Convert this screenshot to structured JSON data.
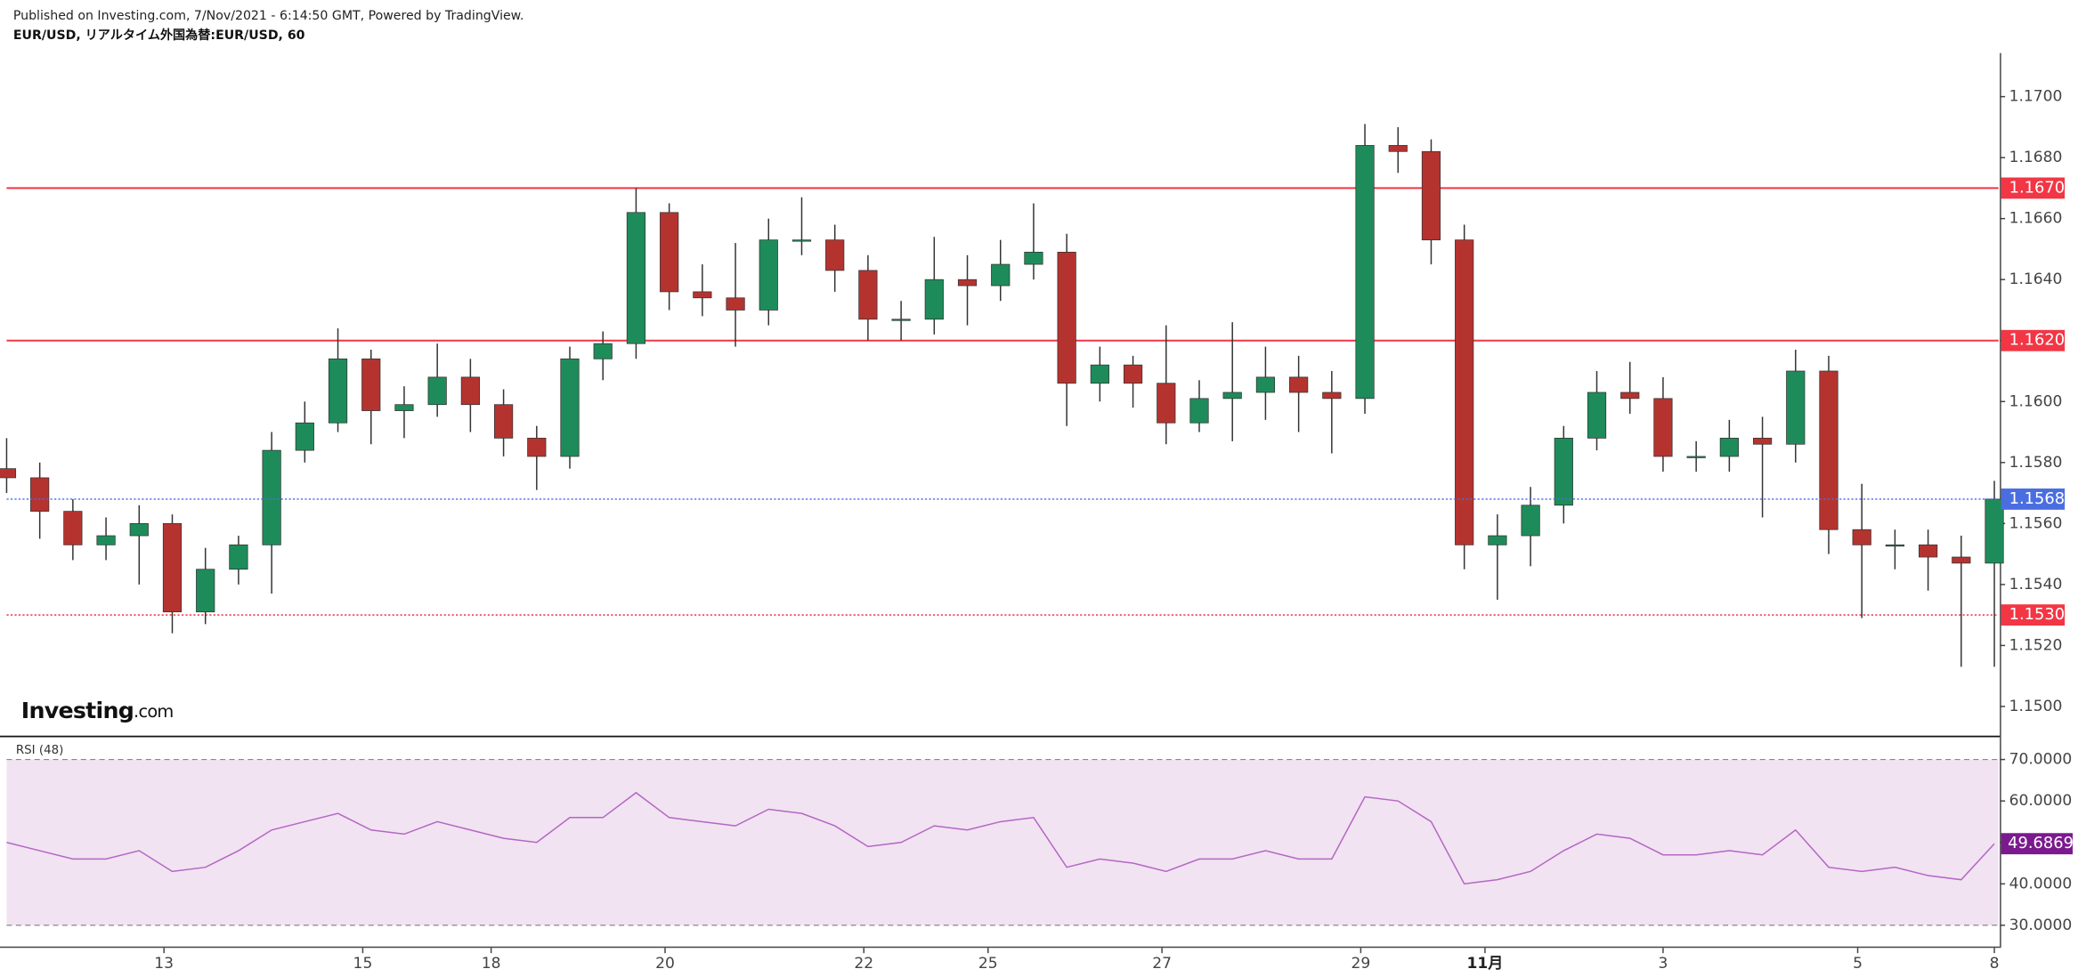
{
  "header": {
    "published": "Published on Investing.com, 7/Nov/2021 - 6:14:50 GMT, Powered by TradingView.",
    "symbol": "EUR/USD, リアルタイム外国為替:EUR/USD, 60"
  },
  "logo": {
    "main": "Investing",
    "suffix": ".com"
  },
  "chart_data": [
    {
      "type": "candlestick",
      "up_color": "#1e8c5a",
      "down_color": "#b5332f",
      "x": [
        0,
        8,
        16,
        24,
        32,
        40,
        48,
        56,
        64,
        72,
        80,
        88,
        96,
        104,
        112,
        120,
        128,
        136,
        144,
        152,
        160,
        168,
        176,
        184,
        192,
        200,
        208,
        216,
        224,
        232,
        240,
        248,
        256,
        264,
        272,
        280,
        288,
        296,
        304,
        312,
        320,
        328,
        336,
        344,
        352,
        360,
        368,
        376,
        384,
        392,
        400,
        408,
        416,
        424,
        432,
        440,
        448,
        456,
        464,
        472,
        480
      ],
      "open": [
        1.1578,
        1.1575,
        1.1564,
        1.1553,
        1.1556,
        1.156,
        1.1531,
        1.1545,
        1.1553,
        1.1584,
        1.1593,
        1.1614,
        1.1597,
        1.1599,
        1.1608,
        1.1599,
        1.1588,
        1.1582,
        1.1614,
        1.1619,
        1.1662,
        1.1636,
        1.1634,
        1.163,
        1.1653,
        1.1653,
        1.1643,
        1.1627,
        1.1627,
        1.164,
        1.1638,
        1.1645,
        1.1649,
        1.1606,
        1.1612,
        1.1606,
        1.1593,
        1.1601,
        1.1603,
        1.1608,
        1.1603,
        1.1601,
        1.1684,
        1.1682,
        1.1653,
        1.1553,
        1.1556,
        1.1566,
        1.1588,
        1.1603,
        1.1601,
        1.1582,
        1.1582,
        1.1588,
        1.1586,
        1.161,
        1.1558,
        1.1553,
        1.1553,
        1.1549,
        1.1547
      ],
      "high": [
        1.1588,
        1.158,
        1.1568,
        1.1562,
        1.1566,
        1.1563,
        1.1552,
        1.1556,
        1.159,
        1.16,
        1.1624,
        1.1617,
        1.1605,
        1.1619,
        1.1614,
        1.1604,
        1.1592,
        1.1618,
        1.1623,
        1.167,
        1.1665,
        1.1645,
        1.1652,
        1.166,
        1.1667,
        1.1658,
        1.1648,
        1.1633,
        1.1654,
        1.1648,
        1.1653,
        1.1665,
        1.1655,
        1.1618,
        1.1615,
        1.1625,
        1.1607,
        1.1626,
        1.1618,
        1.1615,
        1.161,
        1.1691,
        1.169,
        1.1686,
        1.1658,
        1.1563,
        1.1572,
        1.1592,
        1.161,
        1.1613,
        1.1608,
        1.1587,
        1.1594,
        1.1595,
        1.1617,
        1.1615,
        1.1573,
        1.1558,
        1.1558,
        1.1556,
        1.1574
      ],
      "low": [
        1.157,
        1.1555,
        1.1548,
        1.1548,
        1.154,
        1.1524,
        1.1527,
        1.154,
        1.1537,
        1.158,
        1.159,
        1.1586,
        1.1588,
        1.1595,
        1.159,
        1.1582,
        1.1571,
        1.1578,
        1.1607,
        1.1614,
        1.163,
        1.1628,
        1.1618,
        1.1625,
        1.1648,
        1.1636,
        1.162,
        1.162,
        1.1622,
        1.1625,
        1.1633,
        1.164,
        1.1592,
        1.16,
        1.1598,
        1.1586,
        1.159,
        1.1587,
        1.1594,
        1.159,
        1.1583,
        1.1596,
        1.1675,
        1.1645,
        1.1545,
        1.1535,
        1.1546,
        1.156,
        1.1584,
        1.1596,
        1.1577,
        1.1577,
        1.1577,
        1.1562,
        1.158,
        1.155,
        1.1529,
        1.1545,
        1.1538,
        1.1513,
        1.1513
      ],
      "close": [
        1.1575,
        1.1564,
        1.1553,
        1.1556,
        1.156,
        1.1531,
        1.1545,
        1.1553,
        1.1584,
        1.1593,
        1.1614,
        1.1597,
        1.1599,
        1.1608,
        1.1599,
        1.1588,
        1.1582,
        1.1614,
        1.1619,
        1.1662,
        1.1636,
        1.1634,
        1.163,
        1.1653,
        1.1653,
        1.1643,
        1.1627,
        1.1627,
        1.164,
        1.1638,
        1.1645,
        1.1649,
        1.1606,
        1.1612,
        1.1606,
        1.1593,
        1.1601,
        1.1603,
        1.1608,
        1.1603,
        1.1601,
        1.1684,
        1.1682,
        1.1653,
        1.1553,
        1.1556,
        1.1566,
        1.1588,
        1.1603,
        1.1601,
        1.1582,
        1.1582,
        1.1588,
        1.1586,
        1.161,
        1.1558,
        1.1553,
        1.1553,
        1.1549,
        1.1547,
        1.1568
      ],
      "last_value_label": "1.1568",
      "last_color": "#4a6ee0",
      "xlim": [
        0,
        481
      ],
      "ylim": [
        1.14904,
        1.17143
      ],
      "yticks": [
        {
          "value": 1.15,
          "label": "1.1500"
        },
        {
          "value": 1.152,
          "label": "1.1520"
        },
        {
          "value": 1.154,
          "label": "1.1540"
        },
        {
          "value": 1.156,
          "label": "1.1560"
        },
        {
          "value": 1.158,
          "label": "1.1580"
        },
        {
          "value": 1.16,
          "label": "1.1600"
        },
        {
          "value": 1.162,
          "label": "1.1620"
        },
        {
          "value": 1.164,
          "label": "1.1640"
        },
        {
          "value": 1.166,
          "label": "1.1660"
        },
        {
          "value": 1.168,
          "label": "1.1680"
        },
        {
          "value": 1.17,
          "label": "1.1700"
        }
      ],
      "hlines": [
        {
          "value": 1.167,
          "label": "1.1670",
          "color": "#f23645",
          "style": "solid"
        },
        {
          "value": 1.162,
          "label": "1.1620",
          "color": "#f23645",
          "style": "solid"
        },
        {
          "value": 1.153,
          "label": "1.1530",
          "color": "#f23645",
          "style": "dotted"
        }
      ]
    },
    {
      "type": "line",
      "title": "RSI (48)",
      "color": "#b566c4",
      "band": [
        30,
        70
      ],
      "band_color": "#f1e3f2",
      "last_color": "#7b1a8e",
      "x": [
        0,
        8,
        16,
        24,
        32,
        40,
        48,
        56,
        64,
        72,
        80,
        88,
        96,
        104,
        112,
        120,
        128,
        136,
        144,
        152,
        160,
        168,
        176,
        184,
        192,
        200,
        208,
        216,
        224,
        232,
        240,
        248,
        256,
        264,
        272,
        280,
        288,
        296,
        304,
        312,
        320,
        328,
        336,
        344,
        352,
        360,
        368,
        376,
        384,
        392,
        400,
        408,
        416,
        424,
        432,
        440,
        448,
        456,
        464,
        472,
        480
      ],
      "values": [
        50,
        48,
        46,
        46,
        48,
        43,
        44,
        48,
        53,
        55,
        57,
        53,
        52,
        55,
        53,
        51,
        50,
        56,
        56,
        62,
        56,
        55,
        54,
        58,
        57,
        54,
        49,
        50,
        54,
        53,
        55,
        56,
        44,
        46,
        45,
        43,
        46,
        46,
        48,
        46,
        46,
        61,
        60,
        55,
        40,
        41,
        43,
        48,
        52,
        51,
        47,
        47,
        48,
        47,
        53,
        44,
        43,
        44,
        42,
        41,
        49.6869
      ],
      "last_value_label": "49.6869",
      "xlim": [
        0,
        481
      ],
      "ylim": [
        25.2,
        75.1
      ],
      "yticks": [
        {
          "value": 30,
          "label": "30.0000"
        },
        {
          "value": 40,
          "label": "40.0000"
        },
        {
          "value": 50,
          "label": "50.0000"
        },
        {
          "value": 60,
          "label": "60.0000"
        },
        {
          "value": 70,
          "label": "70.0000"
        }
      ],
      "xticks": [
        {
          "value": 38,
          "label": "13"
        },
        {
          "value": 86,
          "label": "15"
        },
        {
          "value": 117,
          "label": "18"
        },
        {
          "value": 159,
          "label": "20"
        },
        {
          "value": 207,
          "label": "22"
        },
        {
          "value": 237,
          "label": "25"
        },
        {
          "value": 279,
          "label": "27"
        },
        {
          "value": 327,
          "label": "29"
        },
        {
          "value": 357,
          "label": "11月"
        },
        {
          "value": 400,
          "label": "3"
        },
        {
          "value": 447,
          "label": "5"
        },
        {
          "value": 480,
          "label": "8"
        }
      ]
    }
  ]
}
